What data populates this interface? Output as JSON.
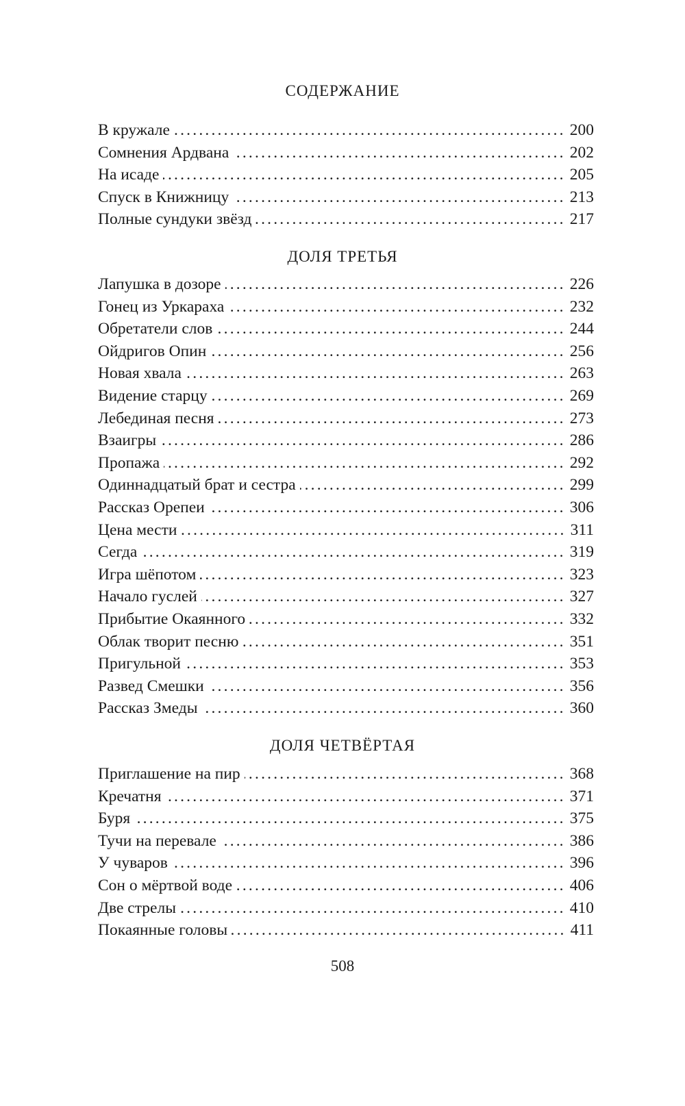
{
  "header": {
    "title": "СОДЕРЖАНИЕ"
  },
  "sections": [
    {
      "title": "",
      "entries": [
        {
          "title": "В кружале",
          "page": "200"
        },
        {
          "title": "Сомнения Ардвана",
          "page": "202"
        },
        {
          "title": "На исаде",
          "page": "205"
        },
        {
          "title": "Спуск в Книжницу",
          "page": "213"
        },
        {
          "title": "Полные сундуки звёзд",
          "page": "217"
        }
      ]
    },
    {
      "title": "ДОЛЯ ТРЕТЬЯ",
      "entries": [
        {
          "title": "Лапушка в дозоре",
          "page": "226"
        },
        {
          "title": "Гонец из Уркараха",
          "page": "232"
        },
        {
          "title": "Обретатели слов",
          "page": "244"
        },
        {
          "title": "Ойдригов Опин",
          "page": "256"
        },
        {
          "title": "Новая хвала",
          "page": "263"
        },
        {
          "title": "Видение старцу",
          "page": "269"
        },
        {
          "title": "Лебединая песня",
          "page": "273"
        },
        {
          "title": "Взаигры",
          "page": "286"
        },
        {
          "title": "Пропажа",
          "page": "292"
        },
        {
          "title": "Одиннадцатый брат и сестра",
          "page": "299"
        },
        {
          "title": "Рассказ Орепеи",
          "page": "306"
        },
        {
          "title": "Цена мести",
          "page": "311"
        },
        {
          "title": "Сегда",
          "page": "319"
        },
        {
          "title": "Игра шёпотом",
          "page": "323"
        },
        {
          "title": "Начало гуслей",
          "page": "327"
        },
        {
          "title": "Прибытие Окаянного",
          "page": "332"
        },
        {
          "title": "Облак творит песню",
          "page": "351"
        },
        {
          "title": "Пригульной",
          "page": "353"
        },
        {
          "title": "Развед Смешки",
          "page": "356"
        },
        {
          "title": "Рассказ Змеды",
          "page": "360"
        }
      ]
    },
    {
      "title": "ДОЛЯ ЧЕТВЁРТАЯ",
      "entries": [
        {
          "title": "Приглашение на пир",
          "page": "368"
        },
        {
          "title": "Кречатня",
          "page": "371"
        },
        {
          "title": "Буря",
          "page": "375"
        },
        {
          "title": "Тучи на перевале",
          "page": "386"
        },
        {
          "title": "У чуваров",
          "page": "396"
        },
        {
          "title": "Сон о мёртвой воде",
          "page": "406"
        },
        {
          "title": "Две стрелы",
          "page": "410"
        },
        {
          "title": "Покаянные головы",
          "page": "411"
        }
      ]
    }
  ],
  "footer": {
    "page_number": "508"
  }
}
